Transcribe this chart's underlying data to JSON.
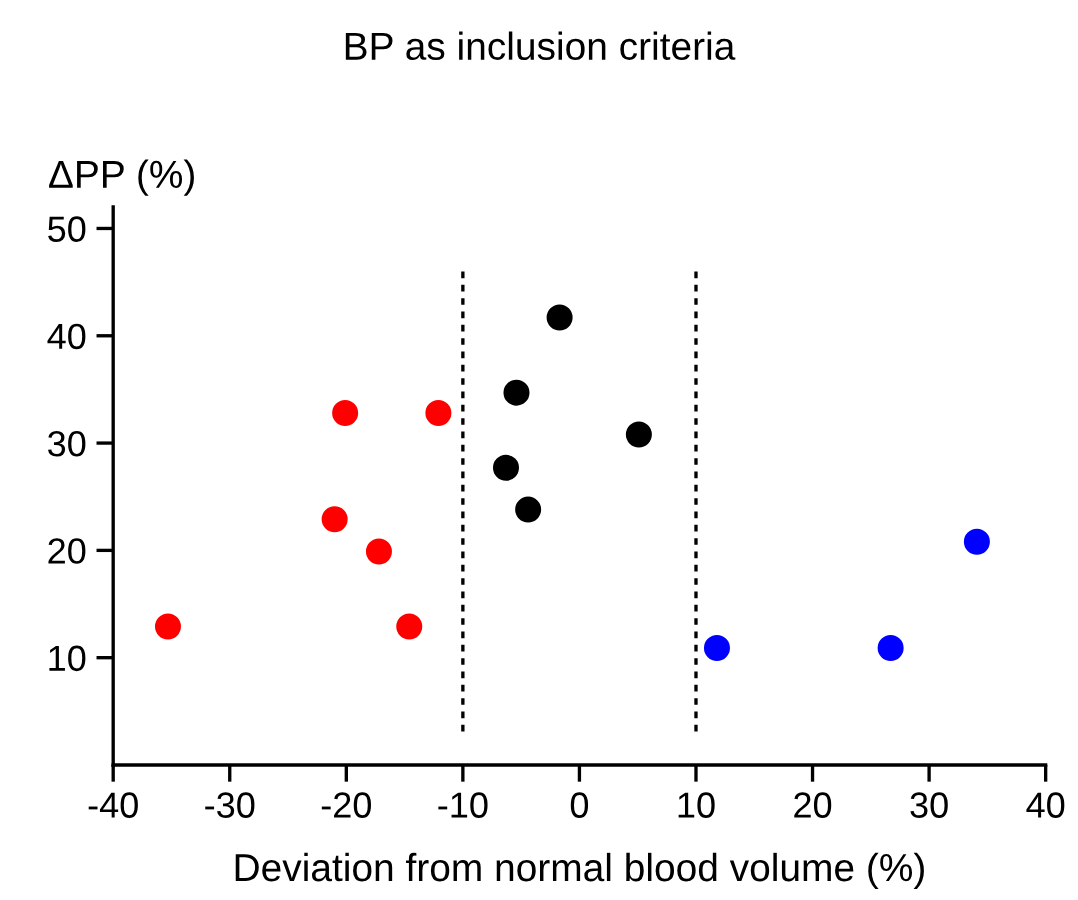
{
  "chart_data": {
    "type": "scatter",
    "title": "BP as inclusion criteria",
    "xlabel": "Deviation from normal blood volume (%)",
    "ylabel": "ΔPP (%)",
    "series": [
      {
        "color": "#ff0000",
        "x": [
          -35.3,
          -20.1,
          -12.1,
          -21,
          -17.2,
          -14.6
        ],
        "values": [
          12.9,
          32.8,
          32.8,
          22.9,
          19.9,
          12.9
        ]
      },
      {
        "color": "#000000",
        "x": [
          -1.7,
          -5.4,
          -6.3,
          -4.4,
          5.1
        ],
        "values": [
          41.7,
          34.7,
          27.7,
          23.8,
          30.8
        ]
      },
      {
        "color": "#0000ff",
        "x": [
          11.8,
          26.7,
          34.1
        ],
        "values": [
          10.9,
          10.9,
          20.8
        ]
      }
    ],
    "xlim": [
      -40,
      40
    ],
    "xticks": [
      -40,
      -30,
      -20,
      -10,
      0,
      10,
      20,
      30,
      40
    ],
    "ylim": [
      0,
      52
    ],
    "yticks": [
      10,
      20,
      30,
      40,
      50
    ],
    "ref_lines": [
      {
        "axis": "x",
        "value": -10,
        "line_style": "dotted",
        "color": "#000000"
      },
      {
        "axis": "x",
        "value": 10,
        "line_style": "dotted",
        "color": "#000000"
      }
    ],
    "marker": "circle",
    "grid": false,
    "legend": false
  }
}
